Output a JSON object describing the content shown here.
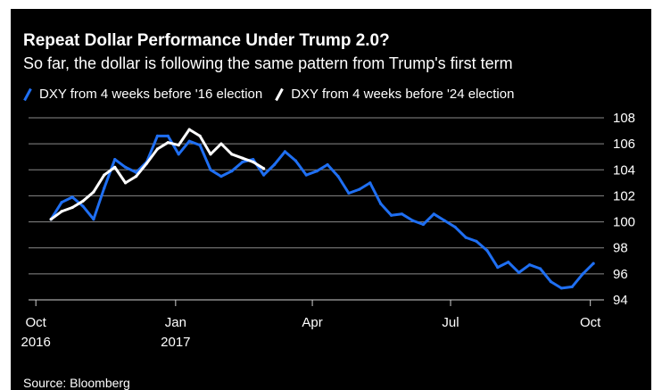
{
  "title": "Repeat Dollar Performance Under Trump 2.0?",
  "subtitle": "So far, the dollar is following the same pattern from Trump's first term",
  "source": "Source: Bloomberg",
  "chart_data": {
    "type": "line",
    "ylim": [
      94,
      108
    ],
    "y_ticks": [
      108,
      106,
      104,
      102,
      100,
      98,
      96,
      94
    ],
    "x_range": [
      "2016-10-05",
      "2017-10-10"
    ],
    "x_ticks": [
      {
        "date": "2016-10-01",
        "label": "Oct",
        "label2": "2016"
      },
      {
        "date": "2017-01-01",
        "label": "Jan",
        "label2": "2017"
      },
      {
        "date": "2017-04-01",
        "label": "Apr",
        "label2": ""
      },
      {
        "date": "2017-07-01",
        "label": "Jul",
        "label2": ""
      },
      {
        "date": "2017-10-01",
        "label": "Oct",
        "label2": ""
      }
    ],
    "grid": true,
    "y_axis_side": "right",
    "legend_position": "top-left",
    "series": [
      {
        "name": "DXY from 4 weeks before '16 election",
        "color": "#1f6ff2",
        "x": [
          "2016-10-11",
          "2016-10-18",
          "2016-10-25",
          "2016-11-01",
          "2016-11-08",
          "2016-11-15",
          "2016-11-22",
          "2016-11-29",
          "2016-12-06",
          "2016-12-13",
          "2016-12-20",
          "2016-12-27",
          "2017-01-03",
          "2017-01-10",
          "2017-01-17",
          "2017-01-24",
          "2017-01-31",
          "2017-02-07",
          "2017-02-14",
          "2017-02-21",
          "2017-02-28",
          "2017-03-07",
          "2017-03-14",
          "2017-03-21",
          "2017-03-28",
          "2017-04-04",
          "2017-04-11",
          "2017-04-18",
          "2017-04-25",
          "2017-05-02",
          "2017-05-09",
          "2017-05-16",
          "2017-05-23",
          "2017-05-30",
          "2017-06-06",
          "2017-06-13",
          "2017-06-20",
          "2017-06-27",
          "2017-07-04",
          "2017-07-11",
          "2017-07-18",
          "2017-07-25",
          "2017-08-01",
          "2017-08-08",
          "2017-08-15",
          "2017-08-22",
          "2017-08-29",
          "2017-09-05",
          "2017-09-12",
          "2017-09-19",
          "2017-09-26",
          "2017-10-03"
        ],
        "values": [
          100.2,
          101.5,
          101.9,
          101.2,
          100.2,
          102.6,
          104.8,
          104.2,
          103.8,
          104.6,
          106.6,
          106.6,
          105.2,
          106.2,
          105.9,
          104.0,
          103.5,
          103.9,
          104.6,
          104.8,
          103.6,
          104.4,
          105.4,
          104.7,
          103.6,
          103.9,
          104.4,
          103.5,
          102.2,
          102.5,
          103.0,
          101.4,
          100.5,
          100.6,
          100.1,
          99.8,
          100.6,
          100.1,
          99.6,
          98.8,
          98.5,
          97.8,
          96.5,
          96.9,
          96.1,
          96.7,
          96.4,
          95.4,
          94.9,
          95.0,
          96.0,
          96.8
        ]
      },
      {
        "name": "DXY from 4 weeks before '24 election",
        "color": "#ffffff",
        "x": [
          "2016-10-11",
          "2016-10-18",
          "2016-10-25",
          "2016-11-01",
          "2016-11-08",
          "2016-11-15",
          "2016-11-22",
          "2016-11-29",
          "2016-12-06",
          "2016-12-13",
          "2016-12-20",
          "2016-12-27",
          "2017-01-03",
          "2017-01-10",
          "2017-01-17",
          "2017-01-24",
          "2017-01-31",
          "2017-02-07",
          "2017-02-14",
          "2017-02-21",
          "2017-02-28"
        ],
        "values": [
          100.2,
          100.8,
          101.1,
          101.6,
          102.3,
          103.6,
          104.2,
          103.0,
          103.5,
          104.5,
          105.6,
          106.1,
          105.9,
          107.1,
          106.6,
          105.2,
          106.0,
          105.2,
          104.9,
          104.6,
          104.1
        ]
      }
    ]
  }
}
